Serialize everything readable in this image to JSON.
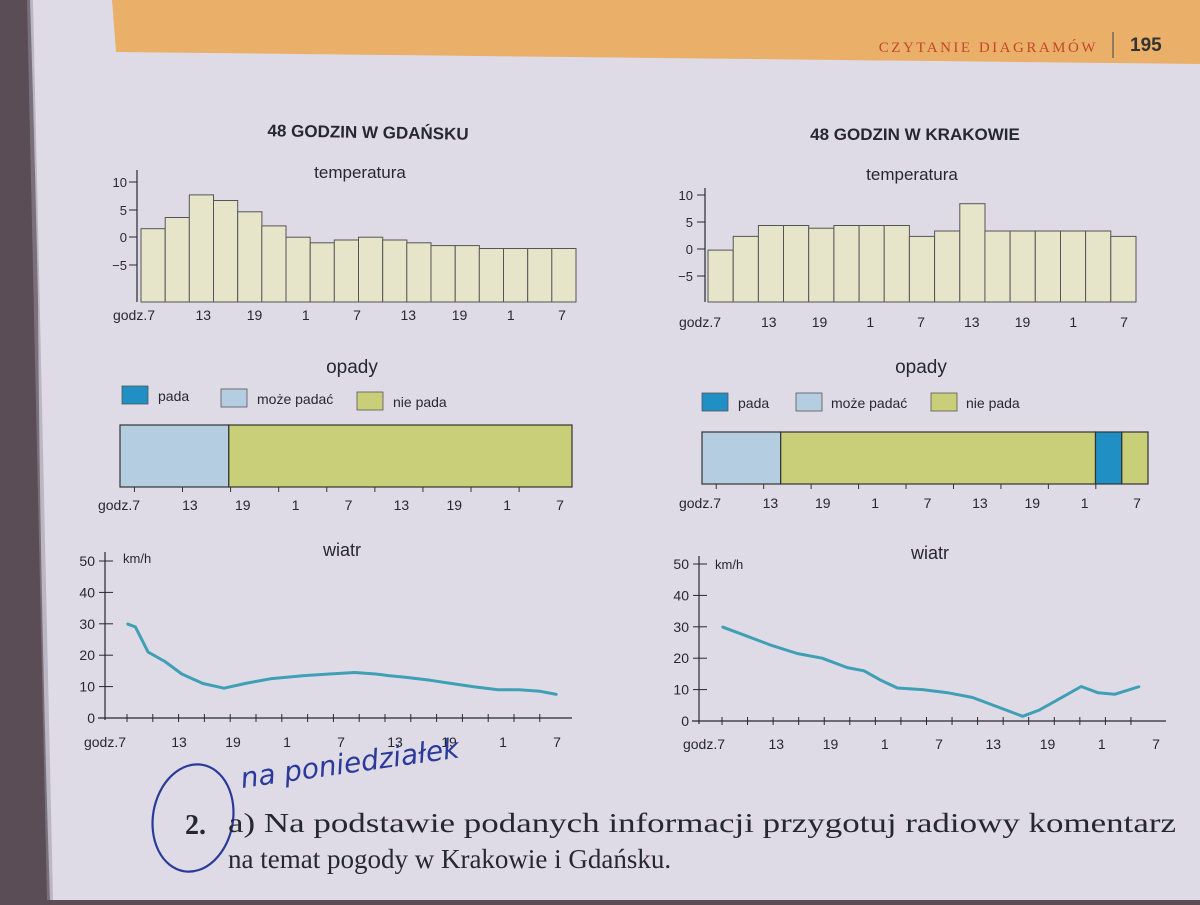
{
  "header": {
    "section": "CZYTANIE DIAGRAMÓW",
    "page_number": "195"
  },
  "colors": {
    "paper": "#dfdbe6",
    "header_band": "#eab06a",
    "bar_fill": "#e6e4c9",
    "line": "#3f9fb4",
    "pada": "#1f8fc4",
    "moze_padac": "#b4cde0",
    "nie_pada": "#c9cf78",
    "ink": "#262830"
  },
  "chart_data": [
    {
      "id": "gdansk-temperature",
      "type": "bar",
      "city_title": "48 GODZIN W GDAŃSKU",
      "title": "temperatura",
      "yticks": [
        "10",
        "5",
        "0",
        "−5"
      ],
      "ylim": [
        -11,
        11
      ],
      "xlabels": [
        "godz.7",
        "13",
        "19",
        "1",
        "7",
        "13",
        "19",
        "1",
        "7"
      ],
      "values": [
        2,
        4,
        8,
        7,
        5,
        2.5,
        0.5,
        -0.5,
        0,
        0.5,
        0,
        -0.5,
        -1,
        -1,
        -1.5,
        -1.5,
        -1.5,
        -1.5
      ]
    },
    {
      "id": "krakow-temperature",
      "type": "bar",
      "city_title": "48 GODZIN W KRAKOWIE",
      "title": "temperatura",
      "yticks": [
        "10",
        "5",
        "0",
        "−5"
      ],
      "ylim": [
        -10,
        10.5
      ],
      "xlabels": [
        "godz.7",
        "13",
        "19",
        "1",
        "7",
        "13",
        "19",
        "1",
        "7"
      ],
      "values": [
        -0.5,
        2,
        4,
        4,
        3.5,
        4,
        4,
        4,
        2,
        3,
        8,
        3,
        3,
        3,
        3,
        3,
        2
      ]
    },
    {
      "id": "gdansk-precipitation",
      "type": "stacked-bar",
      "title": "opady",
      "legend": [
        {
          "key": "pada",
          "label": "pada"
        },
        {
          "key": "moze_padac",
          "label": "może padać"
        },
        {
          "key": "nie_pada",
          "label": "nie pada"
        }
      ],
      "xlabels": [
        "godz.7",
        "13",
        "19",
        "1",
        "7",
        "13",
        "19",
        "1",
        "7"
      ],
      "segments": [
        {
          "key": "moze_padac",
          "hours": 13
        },
        {
          "key": "nie_pada",
          "hours": 41
        }
      ]
    },
    {
      "id": "krakow-precipitation",
      "type": "stacked-bar",
      "title": "opady",
      "legend": [
        {
          "key": "pada",
          "label": "pada"
        },
        {
          "key": "moze_padac",
          "label": "może padać"
        },
        {
          "key": "nie_pada",
          "label": "nie pada"
        }
      ],
      "xlabels": [
        "godz.7",
        "13",
        "19",
        "1",
        "7",
        "13",
        "19",
        "1",
        "7"
      ],
      "segments": [
        {
          "key": "moze_padac",
          "hours": 9
        },
        {
          "key": "nie_pada",
          "hours": 36
        },
        {
          "key": "pada",
          "hours": 3
        },
        {
          "key": "nie_pada",
          "hours": 3
        }
      ]
    },
    {
      "id": "gdansk-wind",
      "type": "line",
      "title": "wiatr",
      "unit": "km/h",
      "yticks": [
        "50",
        "40",
        "30",
        "20",
        "10",
        "0"
      ],
      "ylim": [
        0,
        50
      ],
      "xlabels": [
        "godz.7",
        "13",
        "19",
        "1",
        "7",
        "13",
        "19",
        "1",
        "7"
      ],
      "x": [
        0,
        1,
        2.5,
        4.5,
        6.5,
        9,
        11.5,
        14,
        17,
        21,
        24,
        27,
        29.5,
        31,
        33,
        36,
        38.5,
        41,
        44,
        46.5,
        49,
        51
      ],
      "y": [
        30,
        29,
        21,
        18,
        14,
        11,
        9.5,
        11,
        12.5,
        13.5,
        14,
        14.5,
        14,
        13.5,
        13,
        12,
        11,
        10,
        9,
        9,
        8.5,
        7.5
      ]
    },
    {
      "id": "krakow-wind",
      "type": "line",
      "title": "wiatr",
      "unit": "km/h",
      "yticks": [
        "50",
        "40",
        "30",
        "20",
        "10",
        "0"
      ],
      "ylim": [
        0,
        50
      ],
      "xlabels": [
        "godz.7",
        "13",
        "19",
        "1",
        "7",
        "13",
        "19",
        "1",
        "7"
      ],
      "x": [
        0,
        3,
        6,
        9,
        12,
        15,
        17,
        19,
        21,
        24,
        27,
        30,
        33,
        36,
        38,
        41,
        43,
        45,
        47,
        50
      ],
      "y": [
        30,
        27,
        24,
        21.5,
        20,
        17,
        16,
        13,
        10.5,
        10,
        9,
        7.5,
        4.5,
        1.5,
        3.5,
        8,
        11,
        9,
        8.5,
        11
      ]
    }
  ],
  "exercise": {
    "handwritten_note": "na poniedziałek",
    "number": "2.",
    "line1": "a) Na podstawie podanych informacji przygotuj radiowy komentarz",
    "line2": "na temat pogody w Krakowie i Gdańsku."
  }
}
